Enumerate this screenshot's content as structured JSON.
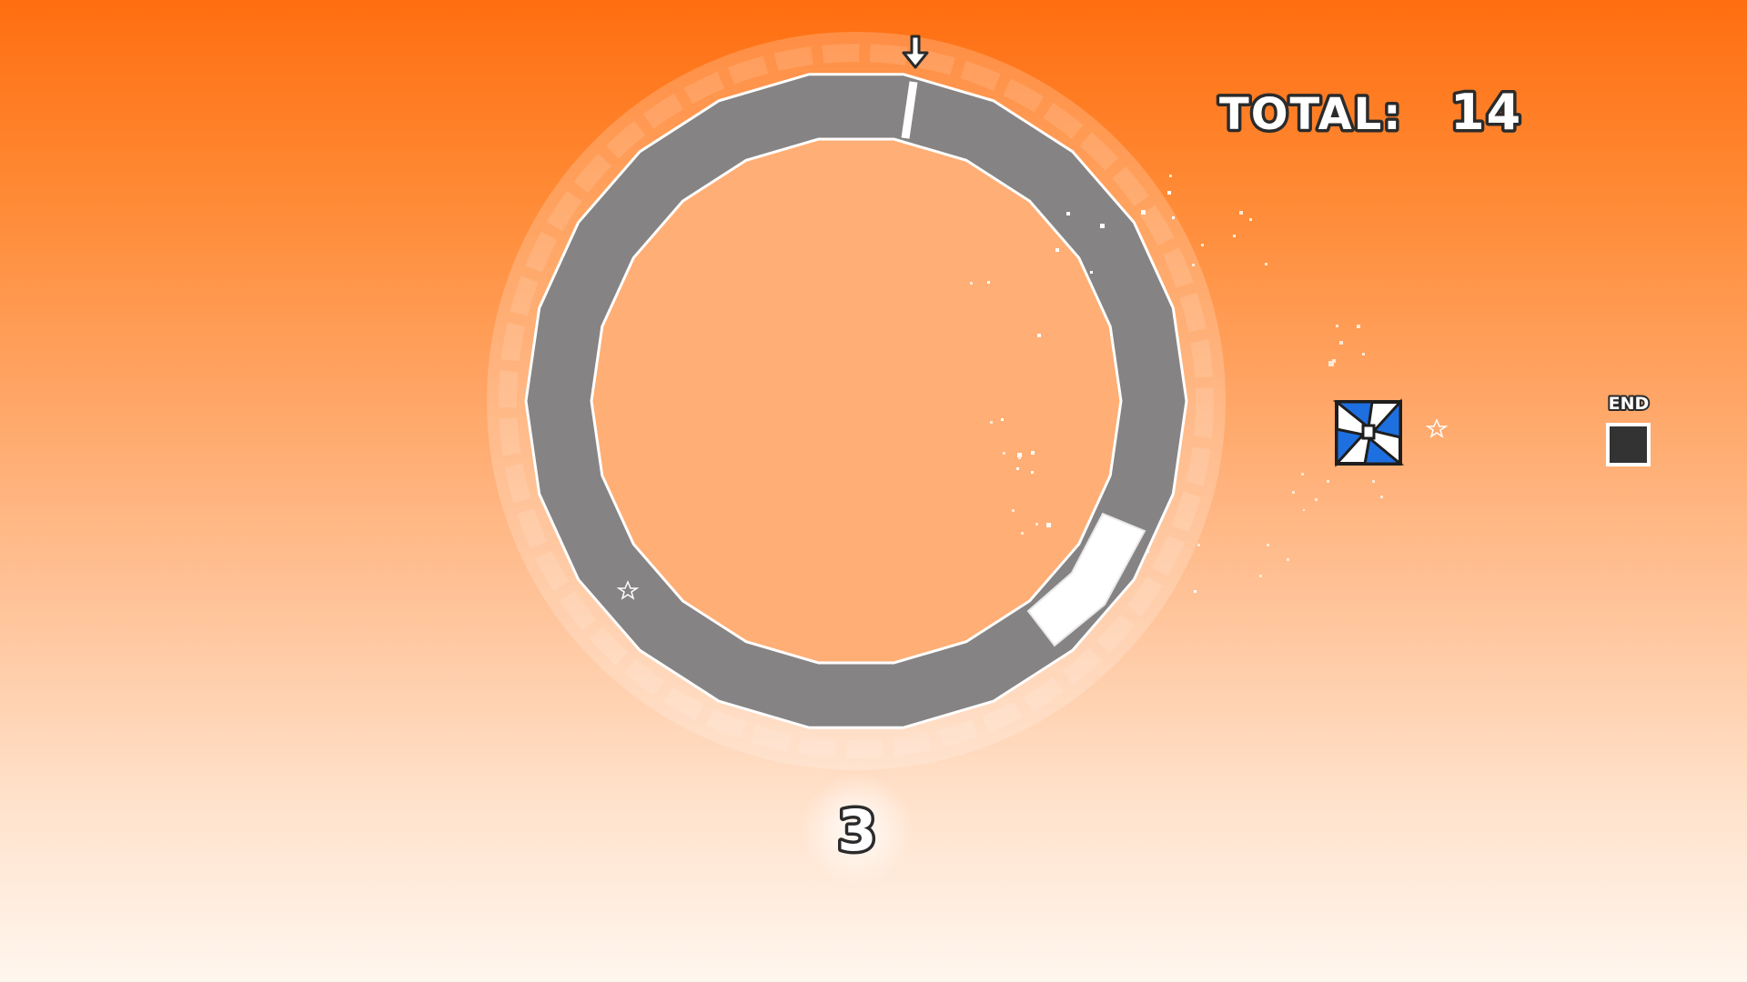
{
  "hud": {
    "total_label": "TOTAL:",
    "total_value": "14",
    "counter_value": "3",
    "end_label": "END"
  },
  "game": {
    "drop_arrow_icon": "down-arrow-icon",
    "player_icon": "pinwheel-cube-icon",
    "star_icon": "star-outline-icon"
  },
  "colors": {
    "ring": "#858383",
    "player_primary": "#1e6fe0",
    "end_block": "#333333",
    "background_top": "#ff6e10",
    "background_bottom": "#fff6ee"
  }
}
